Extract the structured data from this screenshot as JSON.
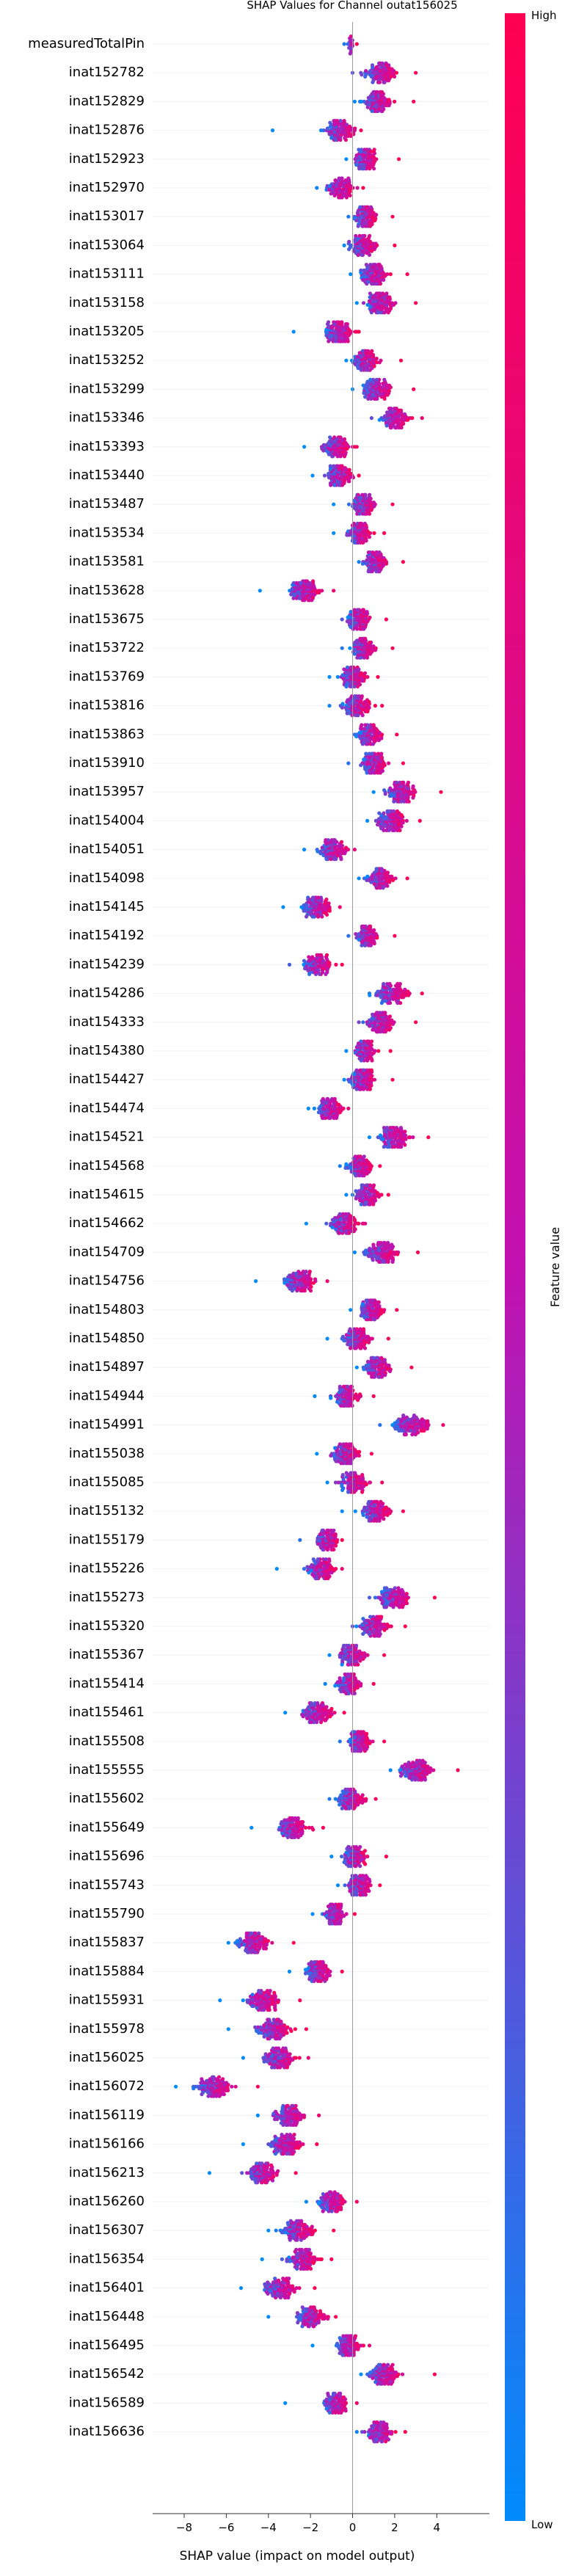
{
  "chart_data": {
    "type": "scatter",
    "subtype": "shap-beeswarm",
    "title": "SHAP Values for Channel outat156025",
    "xlabel": "SHAP value (impact on model output)",
    "xlim": [
      -9.5,
      6.5
    ],
    "xticks": [
      -8,
      -6,
      -4,
      -2,
      0,
      2,
      4
    ],
    "grid": false,
    "colorbar": {
      "label": "Feature value",
      "high_label": "High",
      "low_label": "Low",
      "high_color": "#ff0052",
      "low_color": "#008bfb",
      "placement": "right"
    },
    "features": [
      {
        "name": "measuredTotalPin",
        "center": -0.1,
        "spread": 0.2,
        "min": -0.4,
        "max": 0.2
      },
      {
        "name": "inat152782",
        "center": 1.3,
        "spread": 0.9,
        "min": 0.0,
        "max": 3.0
      },
      {
        "name": "inat152829",
        "center": 1.2,
        "spread": 0.7,
        "min": 0.1,
        "max": 2.9
      },
      {
        "name": "inat152876",
        "center": -0.6,
        "spread": 0.9,
        "min": -3.8,
        "max": 0.4
      },
      {
        "name": "inat152923",
        "center": 0.6,
        "spread": 0.6,
        "min": -0.3,
        "max": 2.2
      },
      {
        "name": "inat152970",
        "center": -0.6,
        "spread": 0.8,
        "min": -1.7,
        "max": 0.5
      },
      {
        "name": "inat153017",
        "center": 0.6,
        "spread": 0.6,
        "min": -0.2,
        "max": 1.9
      },
      {
        "name": "inat153064",
        "center": 0.5,
        "spread": 0.7,
        "min": -0.4,
        "max": 2.0
      },
      {
        "name": "inat153111",
        "center": 1.0,
        "spread": 0.8,
        "min": -0.1,
        "max": 2.6
      },
      {
        "name": "inat153158",
        "center": 1.3,
        "spread": 0.8,
        "min": 0.2,
        "max": 3.0
      },
      {
        "name": "inat153205",
        "center": -0.7,
        "spread": 0.8,
        "min": -2.8,
        "max": 0.3
      },
      {
        "name": "inat153252",
        "center": 0.6,
        "spread": 0.7,
        "min": -0.3,
        "max": 2.3
      },
      {
        "name": "inat153299",
        "center": 1.2,
        "spread": 0.8,
        "min": 0.0,
        "max": 2.9
      },
      {
        "name": "inat153346",
        "center": 2.0,
        "spread": 0.8,
        "min": 0.9,
        "max": 3.3
      },
      {
        "name": "inat153393",
        "center": -0.8,
        "spread": 0.8,
        "min": -2.3,
        "max": 0.2
      },
      {
        "name": "inat153440",
        "center": -0.6,
        "spread": 0.7,
        "min": -1.9,
        "max": 0.3
      },
      {
        "name": "inat153487",
        "center": 0.5,
        "spread": 0.7,
        "min": -0.9,
        "max": 1.9
      },
      {
        "name": "inat153534",
        "center": 0.3,
        "spread": 0.7,
        "min": -0.9,
        "max": 1.5
      },
      {
        "name": "inat153581",
        "center": 1.1,
        "spread": 0.6,
        "min": 0.3,
        "max": 2.4
      },
      {
        "name": "inat153628",
        "center": -2.3,
        "spread": 0.9,
        "min": -4.4,
        "max": -0.9
      },
      {
        "name": "inat153675",
        "center": 0.3,
        "spread": 0.7,
        "min": -0.5,
        "max": 1.6
      },
      {
        "name": "inat153722",
        "center": 0.5,
        "spread": 0.7,
        "min": -0.5,
        "max": 1.9
      },
      {
        "name": "inat153769",
        "center": 0.0,
        "spread": 0.7,
        "min": -1.1,
        "max": 1.2
      },
      {
        "name": "inat153816",
        "center": 0.2,
        "spread": 0.8,
        "min": -1.1,
        "max": 1.4
      },
      {
        "name": "inat153863",
        "center": 0.8,
        "spread": 0.7,
        "min": 0.1,
        "max": 2.1
      },
      {
        "name": "inat153910",
        "center": 1.0,
        "spread": 0.7,
        "min": -0.2,
        "max": 2.4
      },
      {
        "name": "inat153957",
        "center": 2.3,
        "spread": 0.9,
        "min": 1.0,
        "max": 4.2
      },
      {
        "name": "inat154004",
        "center": 1.8,
        "spread": 0.8,
        "min": 0.7,
        "max": 3.2
      },
      {
        "name": "inat154051",
        "center": -0.9,
        "spread": 0.8,
        "min": -2.3,
        "max": 0.1
      },
      {
        "name": "inat154098",
        "center": 1.3,
        "spread": 0.7,
        "min": 0.3,
        "max": 2.6
      },
      {
        "name": "inat154145",
        "center": -1.7,
        "spread": 0.8,
        "min": -3.3,
        "max": -0.6
      },
      {
        "name": "inat154192",
        "center": 0.7,
        "spread": 0.6,
        "min": -0.2,
        "max": 2.0
      },
      {
        "name": "inat154239",
        "center": -1.7,
        "spread": 0.8,
        "min": -3.0,
        "max": -0.5
      },
      {
        "name": "inat154286",
        "center": 1.9,
        "spread": 0.9,
        "min": 0.8,
        "max": 3.3
      },
      {
        "name": "inat154333",
        "center": 1.3,
        "spread": 0.8,
        "min": 0.3,
        "max": 3.0
      },
      {
        "name": "inat154380",
        "center": 0.6,
        "spread": 0.6,
        "min": -0.3,
        "max": 1.8
      },
      {
        "name": "inat154427",
        "center": 0.5,
        "spread": 0.7,
        "min": -0.4,
        "max": 1.9
      },
      {
        "name": "inat154474",
        "center": -1.1,
        "spread": 0.7,
        "min": -2.1,
        "max": -0.2
      },
      {
        "name": "inat154521",
        "center": 2.0,
        "spread": 0.9,
        "min": 0.8,
        "max": 3.6
      },
      {
        "name": "inat154568",
        "center": 0.3,
        "spread": 0.7,
        "min": -0.6,
        "max": 1.3
      },
      {
        "name": "inat154615",
        "center": 0.7,
        "spread": 0.7,
        "min": -0.3,
        "max": 1.7
      },
      {
        "name": "inat154662",
        "center": -0.4,
        "spread": 0.8,
        "min": -2.2,
        "max": 0.6
      },
      {
        "name": "inat154709",
        "center": 1.4,
        "spread": 0.9,
        "min": 0.1,
        "max": 3.1
      },
      {
        "name": "inat154756",
        "center": -2.5,
        "spread": 0.9,
        "min": -4.6,
        "max": -1.2
      },
      {
        "name": "inat154803",
        "center": 0.9,
        "spread": 0.7,
        "min": -0.1,
        "max": 2.1
      },
      {
        "name": "inat154850",
        "center": 0.2,
        "spread": 0.8,
        "min": -1.2,
        "max": 1.7
      },
      {
        "name": "inat154897",
        "center": 1.2,
        "spread": 0.7,
        "min": 0.2,
        "max": 2.8
      },
      {
        "name": "inat154944",
        "center": -0.3,
        "spread": 0.7,
        "min": -1.8,
        "max": 1.0
      },
      {
        "name": "inat154991",
        "center": 2.8,
        "spread": 1.0,
        "min": 1.3,
        "max": 4.3
      },
      {
        "name": "inat155038",
        "center": -0.3,
        "spread": 0.8,
        "min": -1.7,
        "max": 0.9
      },
      {
        "name": "inat155085",
        "center": 0.0,
        "spread": 0.8,
        "min": -1.2,
        "max": 1.4
      },
      {
        "name": "inat155132",
        "center": 1.1,
        "spread": 0.8,
        "min": -0.5,
        "max": 2.4
      },
      {
        "name": "inat155179",
        "center": -1.2,
        "spread": 0.7,
        "min": -2.5,
        "max": -0.5
      },
      {
        "name": "inat155226",
        "center": -1.5,
        "spread": 0.8,
        "min": -3.6,
        "max": -0.5
      },
      {
        "name": "inat155273",
        "center": 2.0,
        "spread": 0.9,
        "min": 0.8,
        "max": 3.9
      },
      {
        "name": "inat155320",
        "center": 1.0,
        "spread": 0.8,
        "min": 0.0,
        "max": 2.5
      },
      {
        "name": "inat155367",
        "center": 0.0,
        "spread": 0.8,
        "min": -1.1,
        "max": 1.5
      },
      {
        "name": "inat155414",
        "center": -0.2,
        "spread": 0.7,
        "min": -1.3,
        "max": 1.0
      },
      {
        "name": "inat155461",
        "center": -1.7,
        "spread": 0.8,
        "min": -3.2,
        "max": -0.4
      },
      {
        "name": "inat155508",
        "center": 0.3,
        "spread": 0.6,
        "min": -0.6,
        "max": 1.5
      },
      {
        "name": "inat155555",
        "center": 3.0,
        "spread": 1.0,
        "min": 1.8,
        "max": 5.0
      },
      {
        "name": "inat155602",
        "center": -0.1,
        "spread": 0.7,
        "min": -1.1,
        "max": 1.1
      },
      {
        "name": "inat155649",
        "center": -2.8,
        "spread": 0.9,
        "min": -4.8,
        "max": -1.4
      },
      {
        "name": "inat155696",
        "center": 0.1,
        "spread": 0.7,
        "min": -1.0,
        "max": 1.6
      },
      {
        "name": "inat155743",
        "center": 0.3,
        "spread": 0.7,
        "min": -0.7,
        "max": 1.3
      },
      {
        "name": "inat155790",
        "center": -0.8,
        "spread": 0.6,
        "min": -1.9,
        "max": 0.1
      },
      {
        "name": "inat155837",
        "center": -4.7,
        "spread": 0.9,
        "min": -5.9,
        "max": -2.8
      },
      {
        "name": "inat155884",
        "center": -1.6,
        "spread": 0.7,
        "min": -3.0,
        "max": -0.5
      },
      {
        "name": "inat155931",
        "center": -4.3,
        "spread": 1.0,
        "min": -6.3,
        "max": -2.5
      },
      {
        "name": "inat155978",
        "center": -3.8,
        "spread": 1.0,
        "min": -5.9,
        "max": -2.2
      },
      {
        "name": "inat156025",
        "center": -3.5,
        "spread": 0.9,
        "min": -5.2,
        "max": -2.1
      },
      {
        "name": "inat156072",
        "center": -6.6,
        "spread": 1.0,
        "min": -8.4,
        "max": -4.5
      },
      {
        "name": "inat156119",
        "center": -3.0,
        "spread": 0.9,
        "min": -4.5,
        "max": -1.6
      },
      {
        "name": "inat156166",
        "center": -3.2,
        "spread": 0.9,
        "min": -5.2,
        "max": -1.7
      },
      {
        "name": "inat156213",
        "center": -4.3,
        "spread": 0.9,
        "min": -6.8,
        "max": -2.7
      },
      {
        "name": "inat156260",
        "center": -1.0,
        "spread": 0.7,
        "min": -2.2,
        "max": 0.2
      },
      {
        "name": "inat156307",
        "center": -2.6,
        "spread": 0.9,
        "min": -4.0,
        "max": -0.9
      },
      {
        "name": "inat156354",
        "center": -2.4,
        "spread": 0.9,
        "min": -4.3,
        "max": -1.0
      },
      {
        "name": "inat156401",
        "center": -3.4,
        "spread": 0.9,
        "min": -5.3,
        "max": -1.8
      },
      {
        "name": "inat156448",
        "center": -2.0,
        "spread": 0.8,
        "min": -4.0,
        "max": -0.8
      },
      {
        "name": "inat156495",
        "center": -0.2,
        "spread": 0.7,
        "min": -1.9,
        "max": 0.8
      },
      {
        "name": "inat156542",
        "center": 1.5,
        "spread": 0.9,
        "min": 0.4,
        "max": 3.9
      },
      {
        "name": "inat156589",
        "center": -0.8,
        "spread": 0.7,
        "min": -3.2,
        "max": 0.2
      },
      {
        "name": "inat156636",
        "center": 1.3,
        "spread": 0.8,
        "min": 0.2,
        "max": 2.5
      }
    ]
  }
}
